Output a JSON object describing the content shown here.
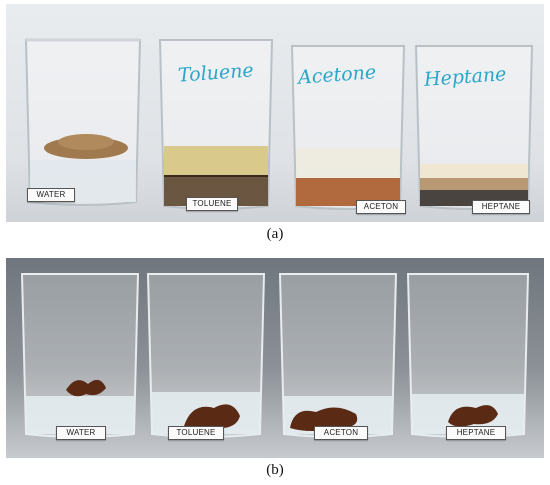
{
  "figure": {
    "panel_a": {
      "caption": "(a)",
      "beakers": [
        {
          "tag": "WATER",
          "marker": ""
        },
        {
          "tag": "TOLUENE",
          "marker": "Toluene"
        },
        {
          "tag": "ACETON",
          "marker": "Acetone"
        },
        {
          "tag": "HEPTANE",
          "marker": "Heptane"
        }
      ]
    },
    "panel_b": {
      "caption": "(b)",
      "beakers": [
        {
          "tag": "WATER"
        },
        {
          "tag": "TOLUENE"
        },
        {
          "tag": "ACETON"
        },
        {
          "tag": "HEPTANE"
        }
      ]
    }
  },
  "colors": {
    "marker_ink": "#2aa7c9",
    "powder": "#a07a4e",
    "toluene_layer": "#d9c98a",
    "aceton_sediment": "#b06a3e",
    "fiber": "#5a2a14"
  }
}
